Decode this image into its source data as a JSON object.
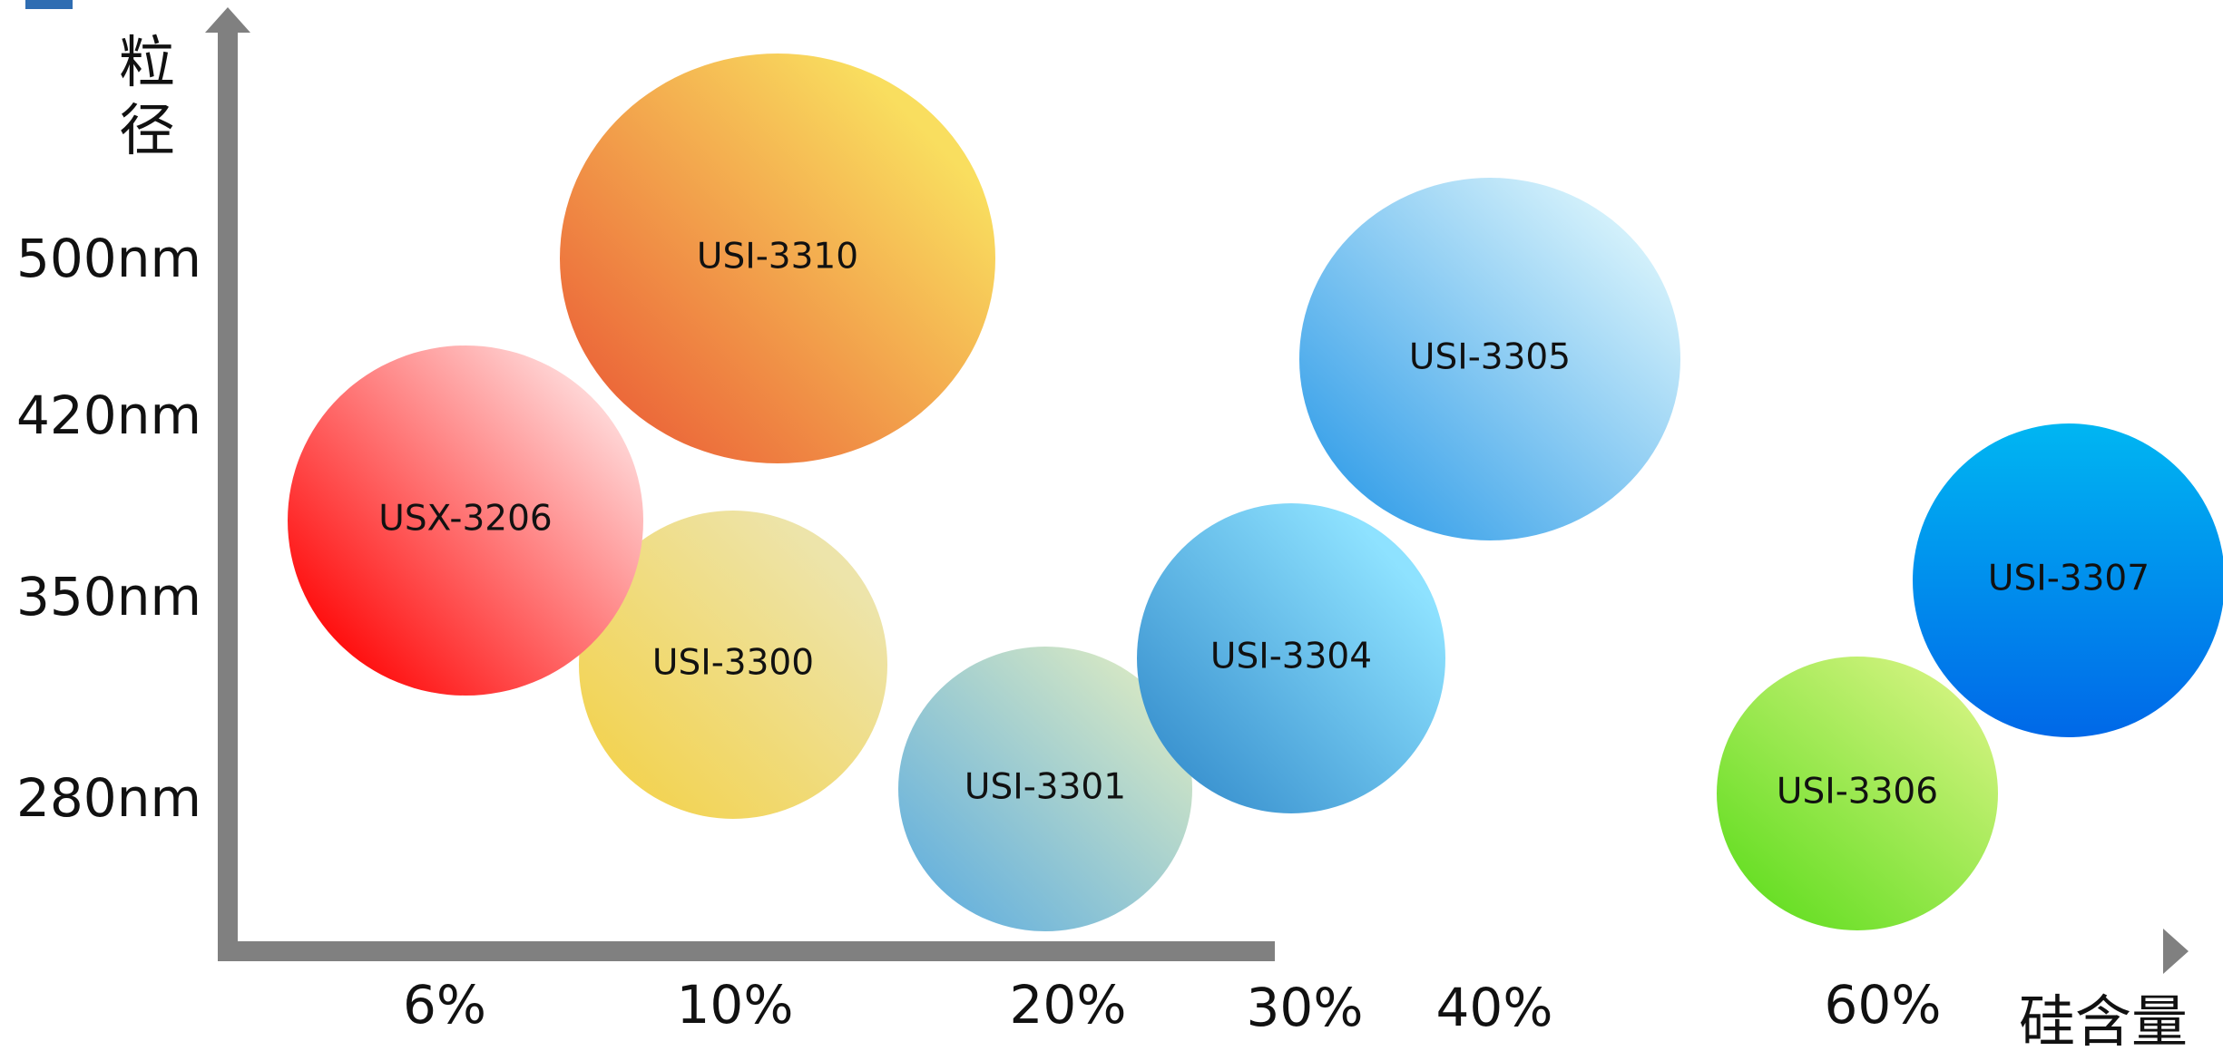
{
  "chart_data": {
    "type": "bubble",
    "xlabel": "硅含量",
    "ylabel": "粒径",
    "x_ticks": [
      "6%",
      "10%",
      "20%",
      "30%",
      "40%",
      "60%"
    ],
    "y_ticks": [
      "500nm",
      "420nm",
      "350nm",
      "280nm"
    ],
    "bubbles": [
      {
        "name": "USI-3310",
        "x": "10%",
        "y_nm": 500,
        "colors": [
          "#f9de5f",
          "#ec6a3a"
        ]
      },
      {
        "name": "USX-3206",
        "x": "6%",
        "y_nm": 390,
        "colors": [
          "#ffd4d4",
          "#ff0a0a"
        ]
      },
      {
        "name": "USI-3300",
        "x": "10%",
        "y_nm": 325,
        "colors": [
          "#ede4aa",
          "#f3d351"
        ]
      },
      {
        "name": "USI-3301",
        "x": "20%",
        "y_nm": 282,
        "colors": [
          "#d3e6c5",
          "#6cb4dc"
        ]
      },
      {
        "name": "USI-3304",
        "x": "30%",
        "y_nm": 330,
        "colors": [
          "#8ee2ff",
          "#3d95d1"
        ]
      },
      {
        "name": "USI-3305",
        "x": "40%",
        "y_nm": 455,
        "colors": [
          "#d2f0fb",
          "#3fa4ea"
        ]
      },
      {
        "name": "USI-3306",
        "x": "60%",
        "y_nm": 281,
        "colors": [
          "#cdf27b",
          "#6adf27"
        ]
      },
      {
        "name": "USI-3307",
        "x": "60%",
        "y_nm": 365,
        "colors": [
          "#00b6f2",
          "#0068e8"
        ]
      }
    ]
  }
}
